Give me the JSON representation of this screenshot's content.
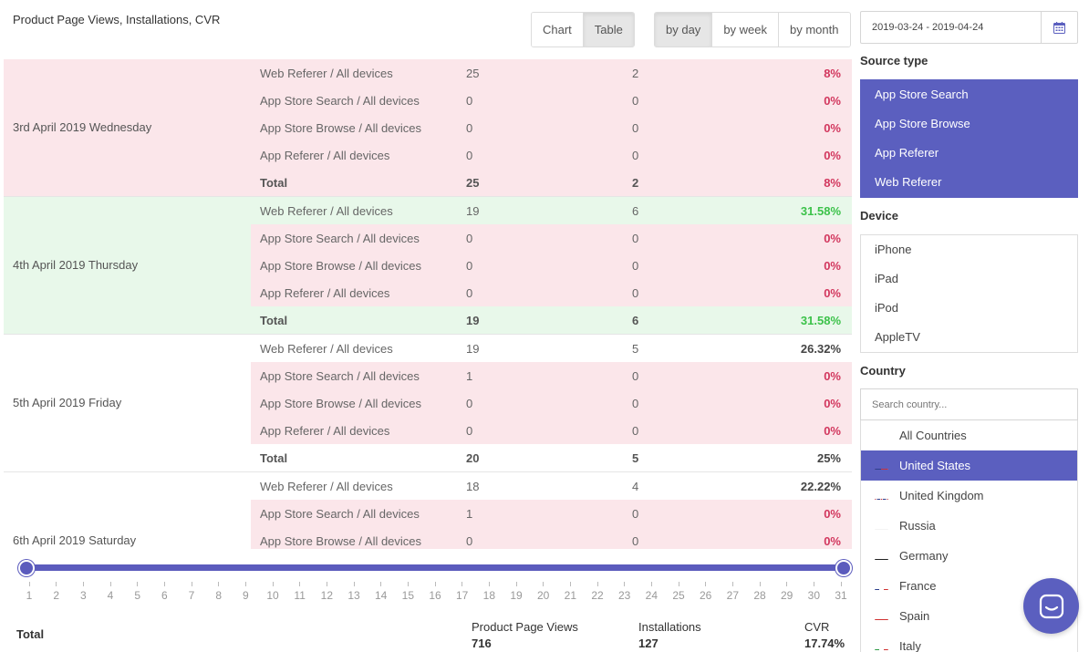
{
  "panel": {
    "title": "Product Page Views, Installations, CVR"
  },
  "view_toggle": {
    "chart": "Chart",
    "table": "Table"
  },
  "period_toggle": {
    "day": "by day",
    "week": "by week",
    "month": "by month"
  },
  "days": [
    {
      "label": "3rd April 2019 Wednesday",
      "rows": [
        {
          "source": "Web Referer / All devices",
          "views": "25",
          "installs": "2",
          "cvr": "8%"
        },
        {
          "source": "App Store Search / All devices",
          "views": "0",
          "installs": "0",
          "cvr": "0%"
        },
        {
          "source": "App Store Browse / All devices",
          "views": "0",
          "installs": "0",
          "cvr": "0%"
        },
        {
          "source": "App Referer / All devices",
          "views": "0",
          "installs": "0",
          "cvr": "0%"
        }
      ],
      "total": {
        "label": "Total",
        "views": "25",
        "installs": "2",
        "cvr": "8%"
      }
    },
    {
      "label": "4th April 2019 Thursday",
      "rows": [
        {
          "source": "Web Referer / All devices",
          "views": "19",
          "installs": "6",
          "cvr": "31.58%"
        },
        {
          "source": "App Store Search / All devices",
          "views": "0",
          "installs": "0",
          "cvr": "0%"
        },
        {
          "source": "App Store Browse / All devices",
          "views": "0",
          "installs": "0",
          "cvr": "0%"
        },
        {
          "source": "App Referer / All devices",
          "views": "0",
          "installs": "0",
          "cvr": "0%"
        }
      ],
      "total": {
        "label": "Total",
        "views": "19",
        "installs": "6",
        "cvr": "31.58%"
      }
    },
    {
      "label": "5th April 2019 Friday",
      "rows": [
        {
          "source": "Web Referer / All devices",
          "views": "19",
          "installs": "5",
          "cvr": "26.32%"
        },
        {
          "source": "App Store Search / All devices",
          "views": "1",
          "installs": "0",
          "cvr": "0%"
        },
        {
          "source": "App Store Browse / All devices",
          "views": "0",
          "installs": "0",
          "cvr": "0%"
        },
        {
          "source": "App Referer / All devices",
          "views": "0",
          "installs": "0",
          "cvr": "0%"
        }
      ],
      "total": {
        "label": "Total",
        "views": "20",
        "installs": "5",
        "cvr": "25%"
      }
    },
    {
      "label": "6th April 2019 Saturday",
      "rows": [
        {
          "source": "Web Referer / All devices",
          "views": "18",
          "installs": "4",
          "cvr": "22.22%"
        },
        {
          "source": "App Store Search / All devices",
          "views": "1",
          "installs": "0",
          "cvr": "0%"
        },
        {
          "source": "App Store Browse / All devices",
          "views": "0",
          "installs": "0",
          "cvr": "0%"
        }
      ]
    }
  ],
  "slider": {
    "ticks": [
      "1",
      "2",
      "3",
      "4",
      "5",
      "6",
      "7",
      "8",
      "9",
      "10",
      "11",
      "12",
      "13",
      "14",
      "15",
      "16",
      "17",
      "18",
      "19",
      "20",
      "21",
      "22",
      "23",
      "24",
      "25",
      "26",
      "27",
      "28",
      "29",
      "30",
      "31"
    ],
    "range_start": "1",
    "range_end": "31"
  },
  "summary": {
    "label": "Total",
    "views_label": "Product Page Views",
    "views": "716",
    "installs_label": "Installations",
    "installs": "127",
    "cvr_label": "CVR",
    "cvr": "17.74%"
  },
  "sidebar": {
    "date_range": "2019-03-24 - 2019-04-24",
    "source_type_title": "Source type",
    "source_types": [
      "App Store Search",
      "App Store Browse",
      "App Referer",
      "Web Referer"
    ],
    "device_title": "Device",
    "devices": [
      "iPhone",
      "iPad",
      "iPod",
      "AppleTV"
    ],
    "country_title": "Country",
    "country_search_placeholder": "Search country...",
    "countries": [
      "All Countries",
      "United States",
      "United Kingdom",
      "Russia",
      "Germany",
      "France",
      "Spain",
      "Italy"
    ],
    "selected_country": "United States"
  },
  "colors": {
    "accent": "#5b5fbf",
    "row_pink": "#fbe6ea",
    "row_green": "#e8f8ea",
    "cvr_red": "#d2375e",
    "cvr_green": "#3cc24a"
  },
  "icons": {
    "calendar": "calendar-icon",
    "chat": "chat-icon"
  }
}
